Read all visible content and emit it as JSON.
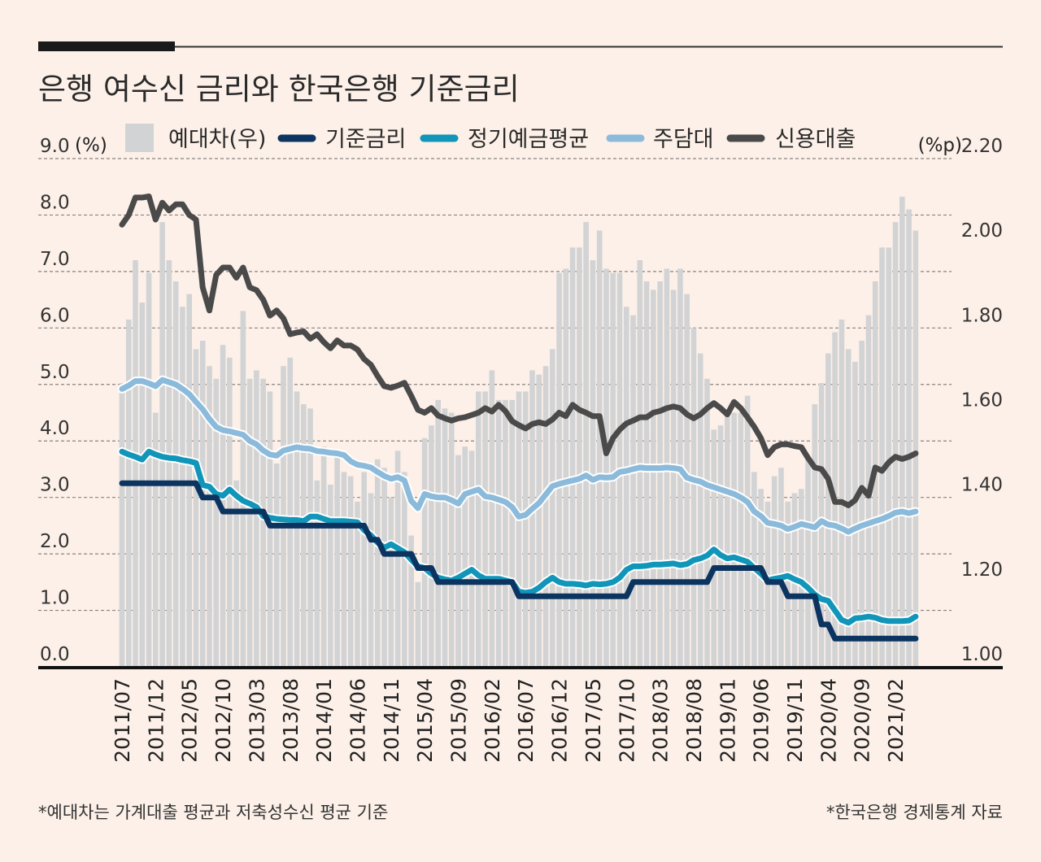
{
  "title": "은행 여수신 금리와 한국은행 기준금리",
  "footnote_left": "*예대차는 가계대출 평균과 저축성수신 평균 기준",
  "footnote_right": "*한국은행 경제통계 자료",
  "chart_data": {
    "type": "bar+line",
    "title": "은행 여수신 금리와 한국은행 기준금리",
    "left_axis": {
      "unit": "(%)",
      "range": [
        0,
        9
      ],
      "ticks": [
        "0.0",
        "1.0",
        "2.0",
        "3.0",
        "4.0",
        "5.0",
        "6.0",
        "7.0",
        "8.0",
        "9.0"
      ]
    },
    "right_axis": {
      "unit": "(%p)",
      "range": [
        1.0,
        2.2
      ],
      "ticks": [
        "1.00",
        "1.20",
        "1.40",
        "1.60",
        "1.80",
        "2.00",
        "2.20"
      ]
    },
    "grid": true,
    "legend_position": "top",
    "x_ticks": [
      "2011/07",
      "2011/12",
      "2012/05",
      "2012/10",
      "2013/03",
      "2013/08",
      "2014/01",
      "2014/06",
      "2014/11",
      "2015/04",
      "2015/09",
      "2016/02",
      "2016/07",
      "2016/12",
      "2017/05",
      "2017/10",
      "2018/03",
      "2018/08",
      "2019/01",
      "2019/06",
      "2019/11",
      "2020/04",
      "2020/09",
      "2021/02"
    ],
    "x_range": [
      "2011/07",
      "2021/05"
    ],
    "colors": {
      "bar": "#d2d3d5",
      "base": "#0c3460",
      "deposit": "#1195b8",
      "mortgage": "#8bbadb",
      "credit": "#4a4a4a"
    },
    "series": [
      {
        "name": "예대차(우)",
        "key": "bar",
        "type": "bar",
        "axis": "right",
        "values": [
          1.67,
          1.82,
          1.96,
          1.86,
          1.93,
          1.6,
          2.05,
          1.96,
          1.91,
          1.85,
          1.88,
          1.75,
          1.77,
          1.71,
          1.68,
          1.76,
          1.73,
          1.44,
          1.84,
          1.68,
          1.7,
          1.68,
          1.65,
          1.48,
          1.71,
          1.73,
          1.65,
          1.62,
          1.61,
          1.44,
          1.52,
          1.43,
          1.51,
          1.46,
          1.45,
          1.39,
          1.46,
          1.41,
          1.49,
          1.47,
          1.4,
          1.51,
          1.46,
          1.31,
          1.2,
          1.54,
          1.57,
          1.63,
          1.61,
          1.6,
          1.5,
          1.52,
          1.51,
          1.65,
          1.65,
          1.7,
          1.63,
          1.63,
          1.63,
          1.65,
          1.65,
          1.7,
          1.69,
          1.71,
          1.75,
          1.93,
          1.94,
          1.99,
          1.99,
          2.05,
          1.96,
          2.03,
          1.94,
          1.93,
          1.93,
          1.85,
          1.83,
          1.96,
          1.91,
          1.89,
          1.91,
          1.94,
          1.89,
          1.94,
          1.88,
          1.8,
          1.74,
          1.68,
          1.56,
          1.57,
          1.6,
          1.6,
          1.6,
          1.64,
          1.46,
          1.42,
          1.39,
          1.45,
          1.47,
          1.39,
          1.41,
          1.42,
          1.49,
          1.62,
          1.67,
          1.74,
          1.79,
          1.82,
          1.75,
          1.72,
          1.77,
          1.83,
          1.91,
          1.99,
          1.99,
          2.05,
          2.11,
          2.08,
          2.03
        ]
      },
      {
        "name": "기준금리",
        "key": "base",
        "type": "line",
        "axis": "left",
        "values": [
          3.25,
          3.25,
          3.25,
          3.25,
          3.25,
          3.25,
          3.25,
          3.25,
          3.25,
          3.25,
          3.25,
          3.25,
          3.0,
          3.0,
          3.0,
          2.75,
          2.75,
          2.75,
          2.75,
          2.75,
          2.75,
          2.75,
          2.5,
          2.5,
          2.5,
          2.5,
          2.5,
          2.5,
          2.5,
          2.5,
          2.5,
          2.5,
          2.5,
          2.5,
          2.5,
          2.5,
          2.5,
          2.25,
          2.25,
          2.0,
          2.0,
          2.0,
          2.0,
          2.0,
          1.75,
          1.75,
          1.75,
          1.5,
          1.5,
          1.5,
          1.5,
          1.5,
          1.5,
          1.5,
          1.5,
          1.5,
          1.5,
          1.5,
          1.5,
          1.25,
          1.25,
          1.25,
          1.25,
          1.25,
          1.25,
          1.25,
          1.25,
          1.25,
          1.25,
          1.25,
          1.25,
          1.25,
          1.25,
          1.25,
          1.25,
          1.25,
          1.5,
          1.5,
          1.5,
          1.5,
          1.5,
          1.5,
          1.5,
          1.5,
          1.5,
          1.5,
          1.5,
          1.5,
          1.75,
          1.75,
          1.75,
          1.75,
          1.75,
          1.75,
          1.75,
          1.75,
          1.5,
          1.5,
          1.5,
          1.25,
          1.25,
          1.25,
          1.25,
          1.25,
          0.75,
          0.75,
          0.5,
          0.5,
          0.5,
          0.5,
          0.5,
          0.5,
          0.5,
          0.5,
          0.5,
          0.5,
          0.5,
          0.5,
          0.5
        ]
      },
      {
        "name": "정기예금평균",
        "key": "deposit",
        "type": "line",
        "axis": "left",
        "values": [
          3.81,
          3.76,
          3.72,
          3.67,
          3.81,
          3.76,
          3.72,
          3.7,
          3.69,
          3.66,
          3.64,
          3.61,
          3.22,
          3.19,
          3.06,
          3.03,
          3.14,
          3.03,
          2.94,
          2.89,
          2.83,
          2.67,
          2.64,
          2.62,
          2.61,
          2.6,
          2.6,
          2.58,
          2.66,
          2.66,
          2.62,
          2.58,
          2.58,
          2.58,
          2.57,
          2.56,
          2.42,
          2.33,
          2.2,
          2.11,
          2.17,
          2.1,
          2.03,
          1.9,
          1.78,
          1.75,
          1.65,
          1.58,
          1.55,
          1.53,
          1.58,
          1.65,
          1.72,
          1.62,
          1.56,
          1.56,
          1.56,
          1.53,
          1.5,
          1.33,
          1.31,
          1.33,
          1.4,
          1.5,
          1.58,
          1.5,
          1.47,
          1.47,
          1.46,
          1.44,
          1.47,
          1.46,
          1.47,
          1.5,
          1.58,
          1.72,
          1.78,
          1.78,
          1.79,
          1.81,
          1.81,
          1.82,
          1.83,
          1.8,
          1.82,
          1.89,
          1.92,
          1.97,
          2.08,
          1.98,
          1.92,
          1.94,
          1.9,
          1.86,
          1.75,
          1.65,
          1.53,
          1.56,
          1.58,
          1.61,
          1.55,
          1.5,
          1.4,
          1.28,
          1.2,
          1.17,
          1.0,
          0.83,
          0.78,
          0.86,
          0.87,
          0.89,
          0.87,
          0.83,
          0.81,
          0.81,
          0.81,
          0.82,
          0.89
        ]
      },
      {
        "name": "주담대",
        "key": "mortgage",
        "type": "line",
        "axis": "left",
        "values": [
          4.92,
          4.98,
          5.06,
          5.06,
          5.02,
          4.97,
          5.08,
          5.04,
          5.0,
          4.92,
          4.83,
          4.69,
          4.56,
          4.39,
          4.25,
          4.19,
          4.17,
          4.14,
          4.11,
          4.0,
          3.94,
          3.83,
          3.76,
          3.74,
          3.83,
          3.86,
          3.89,
          3.87,
          3.86,
          3.82,
          3.81,
          3.79,
          3.78,
          3.75,
          3.64,
          3.58,
          3.56,
          3.53,
          3.45,
          3.38,
          3.33,
          3.36,
          3.3,
          2.94,
          2.81,
          3.06,
          3.02,
          3.0,
          3.0,
          2.95,
          2.89,
          3.06,
          3.1,
          3.14,
          3.02,
          3.0,
          2.96,
          2.92,
          2.83,
          2.66,
          2.69,
          2.8,
          2.9,
          3.05,
          3.2,
          3.24,
          3.27,
          3.3,
          3.33,
          3.39,
          3.31,
          3.36,
          3.35,
          3.36,
          3.45,
          3.47,
          3.5,
          3.53,
          3.52,
          3.52,
          3.52,
          3.53,
          3.52,
          3.5,
          3.35,
          3.31,
          3.28,
          3.22,
          3.18,
          3.14,
          3.1,
          3.06,
          3.0,
          2.92,
          2.75,
          2.67,
          2.55,
          2.53,
          2.5,
          2.44,
          2.48,
          2.53,
          2.5,
          2.47,
          2.58,
          2.52,
          2.5,
          2.45,
          2.39,
          2.45,
          2.5,
          2.54,
          2.58,
          2.62,
          2.67,
          2.73,
          2.75,
          2.72,
          2.75
        ]
      },
      {
        "name": "신용대출",
        "key": "credit",
        "type": "line",
        "axis": "left",
        "values": [
          7.83,
          8.0,
          8.31,
          8.31,
          8.33,
          7.92,
          8.22,
          8.08,
          8.19,
          8.19,
          8.0,
          7.92,
          6.72,
          6.31,
          6.94,
          7.07,
          7.07,
          6.89,
          7.07,
          6.72,
          6.67,
          6.5,
          6.22,
          6.31,
          6.17,
          5.89,
          5.92,
          5.94,
          5.81,
          5.89,
          5.75,
          5.64,
          5.78,
          5.69,
          5.69,
          5.62,
          5.45,
          5.35,
          5.15,
          4.97,
          4.94,
          4.98,
          5.03,
          4.8,
          4.55,
          4.5,
          4.58,
          4.45,
          4.4,
          4.36,
          4.4,
          4.42,
          4.46,
          4.5,
          4.58,
          4.52,
          4.64,
          4.53,
          4.35,
          4.28,
          4.22,
          4.3,
          4.33,
          4.3,
          4.38,
          4.5,
          4.44,
          4.64,
          4.55,
          4.5,
          4.44,
          4.44,
          3.78,
          4.05,
          4.2,
          4.31,
          4.36,
          4.42,
          4.42,
          4.5,
          4.53,
          4.58,
          4.61,
          4.58,
          4.47,
          4.4,
          4.47,
          4.58,
          4.67,
          4.58,
          4.47,
          4.69,
          4.58,
          4.42,
          4.25,
          4.05,
          3.75,
          3.89,
          3.94,
          3.94,
          3.91,
          3.89,
          3.7,
          3.53,
          3.5,
          3.33,
          2.92,
          2.92,
          2.86,
          2.95,
          3.17,
          3.03,
          3.53,
          3.47,
          3.62,
          3.72,
          3.68,
          3.72,
          3.78
        ]
      }
    ]
  }
}
